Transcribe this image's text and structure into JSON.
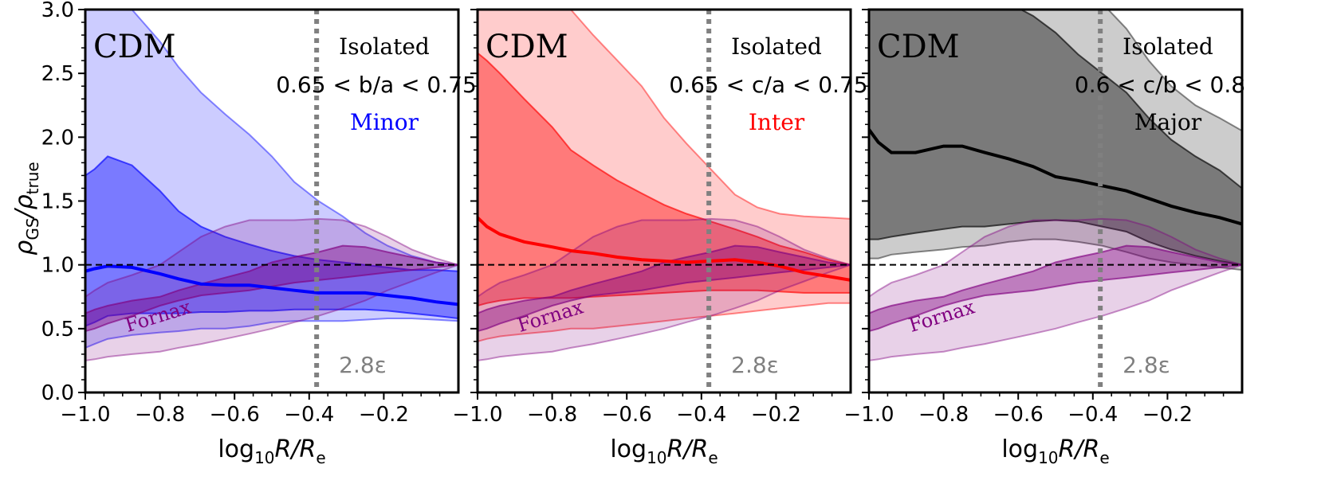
{
  "figure": {
    "ylabel_main": "ρ",
    "ylabel_sub1": "GS",
    "ylabel_sep": "/ρ",
    "ylabel_sub2": "true",
    "xlabel_main": "log",
    "xlabel_sub": "10",
    "xlabel_R": "R",
    "xlabel_sep": "/R",
    "xlabel_e": "e",
    "xticks": [
      "−1.0",
      "−0.8",
      "−0.6",
      "−0.4",
      "−0.2"
    ],
    "yticks": [
      "0.0",
      "0.5",
      "1.0",
      "1.5",
      "2.0",
      "2.5",
      "3.0"
    ],
    "softening_label": "2.8ε",
    "fornax_label": "Fornax"
  },
  "chart_data": [
    {
      "type": "area",
      "title": "CDM",
      "label_isolated": "Isolated",
      "label_cut": "0.65 < b/a < 0.75",
      "label_axis": "Minor",
      "color": "#0000ff",
      "xlim": [
        -1.0,
        0.0
      ],
      "ylim": [
        0.0,
        3.0
      ],
      "xlabel": "log10 R/Re",
      "ylabel": "ρGS/ρtrue",
      "reference_line_y": 1.0,
      "softening_x": -0.38,
      "x": [
        -1.0,
        -0.975,
        -0.94,
        -0.875,
        -0.8,
        -0.75,
        -0.69,
        -0.625,
        -0.56,
        -0.5,
        -0.44,
        -0.375,
        -0.31,
        -0.25,
        -0.19,
        -0.125,
        -0.06,
        0.0
      ],
      "median": [
        0.95,
        0.97,
        0.99,
        0.98,
        0.93,
        0.89,
        0.85,
        0.84,
        0.84,
        0.82,
        0.8,
        0.78,
        0.78,
        0.78,
        0.76,
        0.74,
        0.71,
        0.69
      ],
      "inner_band": {
        "lower": [
          0.52,
          0.55,
          0.6,
          0.62,
          0.62,
          0.62,
          0.63,
          0.63,
          0.64,
          0.64,
          0.65,
          0.65,
          0.65,
          0.65,
          0.64,
          0.62,
          0.6,
          0.58
        ],
        "upper": [
          1.7,
          1.75,
          1.85,
          1.78,
          1.58,
          1.42,
          1.3,
          1.22,
          1.16,
          1.11,
          1.07,
          1.04,
          1.02,
          1.0,
          0.98,
          0.96,
          0.96,
          0.95
        ]
      },
      "outer_band": {
        "lower": [
          0.35,
          0.38,
          0.42,
          0.45,
          0.47,
          0.48,
          0.5,
          0.5,
          0.52,
          0.55,
          0.56,
          0.56,
          0.56,
          0.57,
          0.58,
          0.58,
          0.57,
          0.56
        ],
        "upper": [
          3.2,
          3.2,
          3.2,
          3.0,
          2.75,
          2.55,
          2.35,
          2.18,
          2.02,
          1.85,
          1.65,
          1.5,
          1.38,
          1.25,
          1.15,
          1.07,
          1.02,
          1.0
        ]
      },
      "fornax": {
        "inner_lower": [
          0.48,
          0.5,
          0.54,
          0.6,
          0.68,
          0.72,
          0.76,
          0.78,
          0.8,
          0.83,
          0.86,
          0.88,
          0.9,
          0.92,
          0.94,
          0.96,
          0.98,
          1.0
        ],
        "inner_upper": [
          0.62,
          0.65,
          0.68,
          0.72,
          0.75,
          0.8,
          0.85,
          0.9,
          0.95,
          1.02,
          1.06,
          1.1,
          1.15,
          1.14,
          1.1,
          1.06,
          1.02,
          1.0
        ],
        "outer_lower": [
          0.25,
          0.26,
          0.28,
          0.3,
          0.32,
          0.35,
          0.38,
          0.42,
          0.46,
          0.5,
          0.55,
          0.6,
          0.66,
          0.72,
          0.8,
          0.87,
          0.94,
          1.0
        ],
        "outer_upper": [
          0.75,
          0.8,
          0.86,
          0.92,
          1.0,
          1.1,
          1.22,
          1.3,
          1.35,
          1.35,
          1.35,
          1.36,
          1.35,
          1.3,
          1.22,
          1.12,
          1.05,
          1.0
        ]
      }
    },
    {
      "type": "area",
      "title": "CDM",
      "label_isolated": "Isolated",
      "label_cut": "0.65 < c/a < 0.75",
      "label_axis": "Inter",
      "color": "#ff0000",
      "xlim": [
        -1.0,
        0.0
      ],
      "ylim": [
        0.0,
        3.0
      ],
      "xlabel": "log10 R/Re",
      "ylabel": "ρGS/ρtrue",
      "reference_line_y": 1.0,
      "softening_x": -0.38,
      "x": [
        -1.0,
        -0.975,
        -0.94,
        -0.875,
        -0.8,
        -0.75,
        -0.69,
        -0.625,
        -0.56,
        -0.5,
        -0.44,
        -0.375,
        -0.31,
        -0.25,
        -0.19,
        -0.125,
        -0.06,
        0.0
      ],
      "median": [
        1.37,
        1.3,
        1.24,
        1.18,
        1.14,
        1.11,
        1.09,
        1.06,
        1.04,
        1.03,
        1.02,
        1.03,
        1.04,
        1.02,
        0.99,
        0.94,
        0.91,
        0.88
      ],
      "inner_band": {
        "lower": [
          0.68,
          0.7,
          0.72,
          0.74,
          0.74,
          0.74,
          0.75,
          0.76,
          0.77,
          0.78,
          0.79,
          0.8,
          0.8,
          0.8,
          0.79,
          0.78,
          0.78,
          0.78
        ],
        "upper": [
          2.66,
          2.6,
          2.5,
          2.3,
          2.08,
          1.9,
          1.78,
          1.66,
          1.56,
          1.47,
          1.4,
          1.34,
          1.28,
          1.22,
          1.15,
          1.1,
          1.04,
          1.0
        ]
      },
      "outer_band": {
        "lower": [
          0.4,
          0.42,
          0.44,
          0.46,
          0.48,
          0.5,
          0.5,
          0.52,
          0.54,
          0.56,
          0.58,
          0.6,
          0.62,
          0.64,
          0.66,
          0.68,
          0.7,
          0.7
        ],
        "upper": [
          3.2,
          3.2,
          3.2,
          3.2,
          3.15,
          3.0,
          2.8,
          2.6,
          2.4,
          2.15,
          1.95,
          1.75,
          1.55,
          1.45,
          1.4,
          1.38,
          1.37,
          1.36
        ]
      },
      "fornax": {
        "inner_lower": [
          0.48,
          0.5,
          0.54,
          0.6,
          0.68,
          0.72,
          0.76,
          0.78,
          0.8,
          0.83,
          0.86,
          0.88,
          0.9,
          0.92,
          0.94,
          0.96,
          0.98,
          1.0
        ],
        "inner_upper": [
          0.62,
          0.65,
          0.68,
          0.72,
          0.75,
          0.8,
          0.85,
          0.9,
          0.95,
          1.02,
          1.06,
          1.1,
          1.15,
          1.14,
          1.1,
          1.06,
          1.02,
          1.0
        ],
        "outer_lower": [
          0.25,
          0.26,
          0.28,
          0.3,
          0.32,
          0.35,
          0.38,
          0.42,
          0.46,
          0.5,
          0.55,
          0.6,
          0.66,
          0.72,
          0.8,
          0.87,
          0.94,
          1.0
        ],
        "outer_upper": [
          0.75,
          0.8,
          0.86,
          0.92,
          1.0,
          1.1,
          1.22,
          1.3,
          1.35,
          1.35,
          1.35,
          1.36,
          1.35,
          1.3,
          1.22,
          1.12,
          1.05,
          1.0
        ]
      }
    },
    {
      "type": "area",
      "title": "CDM",
      "label_isolated": "Isolated",
      "label_cut": "0.6 < c/b < 0.8",
      "label_axis": "Major",
      "color": "#000000",
      "xlim": [
        -1.0,
        0.0
      ],
      "ylim": [
        0.0,
        3.0
      ],
      "xlabel": "log10 R/Re",
      "ylabel": "ρGS/ρtrue",
      "reference_line_y": 1.0,
      "softening_x": -0.38,
      "x": [
        -1.0,
        -0.975,
        -0.94,
        -0.875,
        -0.8,
        -0.75,
        -0.69,
        -0.625,
        -0.56,
        -0.5,
        -0.44,
        -0.375,
        -0.31,
        -0.25,
        -0.19,
        -0.125,
        -0.06,
        0.0
      ],
      "median": [
        2.06,
        1.96,
        1.88,
        1.88,
        1.93,
        1.93,
        1.88,
        1.83,
        1.77,
        1.69,
        1.66,
        1.62,
        1.58,
        1.52,
        1.46,
        1.41,
        1.37,
        1.32
      ],
      "inner_band": {
        "lower": [
          1.2,
          1.2,
          1.22,
          1.25,
          1.28,
          1.3,
          1.3,
          1.32,
          1.34,
          1.35,
          1.34,
          1.3,
          1.26,
          1.18,
          1.12,
          1.07,
          1.03,
          1.0
        ],
        "upper": [
          3.2,
          3.2,
          3.2,
          3.2,
          3.2,
          3.2,
          3.15,
          3.05,
          2.95,
          2.82,
          2.65,
          2.5,
          2.35,
          2.15,
          1.98,
          1.85,
          1.74,
          1.6
        ]
      },
      "outer_band": {
        "lower": [
          1.05,
          1.05,
          1.08,
          1.1,
          1.12,
          1.14,
          1.15,
          1.18,
          1.2,
          1.2,
          1.18,
          1.15,
          1.1,
          1.05,
          1.02,
          1.0,
          0.98,
          0.96
        ],
        "upper": [
          3.2,
          3.2,
          3.2,
          3.2,
          3.2,
          3.2,
          3.2,
          3.2,
          3.2,
          3.2,
          3.2,
          3.05,
          2.85,
          2.6,
          2.4,
          2.25,
          2.15,
          2.05
        ]
      },
      "fornax": {
        "inner_lower": [
          0.48,
          0.5,
          0.54,
          0.6,
          0.68,
          0.72,
          0.76,
          0.78,
          0.8,
          0.83,
          0.86,
          0.88,
          0.9,
          0.92,
          0.94,
          0.96,
          0.98,
          1.0
        ],
        "inner_upper": [
          0.62,
          0.65,
          0.68,
          0.72,
          0.75,
          0.8,
          0.85,
          0.9,
          0.95,
          1.02,
          1.06,
          1.1,
          1.15,
          1.14,
          1.1,
          1.06,
          1.02,
          1.0
        ],
        "outer_lower": [
          0.25,
          0.26,
          0.28,
          0.3,
          0.32,
          0.35,
          0.38,
          0.42,
          0.46,
          0.5,
          0.55,
          0.6,
          0.66,
          0.72,
          0.8,
          0.87,
          0.94,
          1.0
        ],
        "outer_upper": [
          0.75,
          0.8,
          0.86,
          0.92,
          1.0,
          1.1,
          1.22,
          1.3,
          1.35,
          1.35,
          1.35,
          1.36,
          1.35,
          1.3,
          1.22,
          1.12,
          1.05,
          1.0
        ]
      }
    }
  ]
}
